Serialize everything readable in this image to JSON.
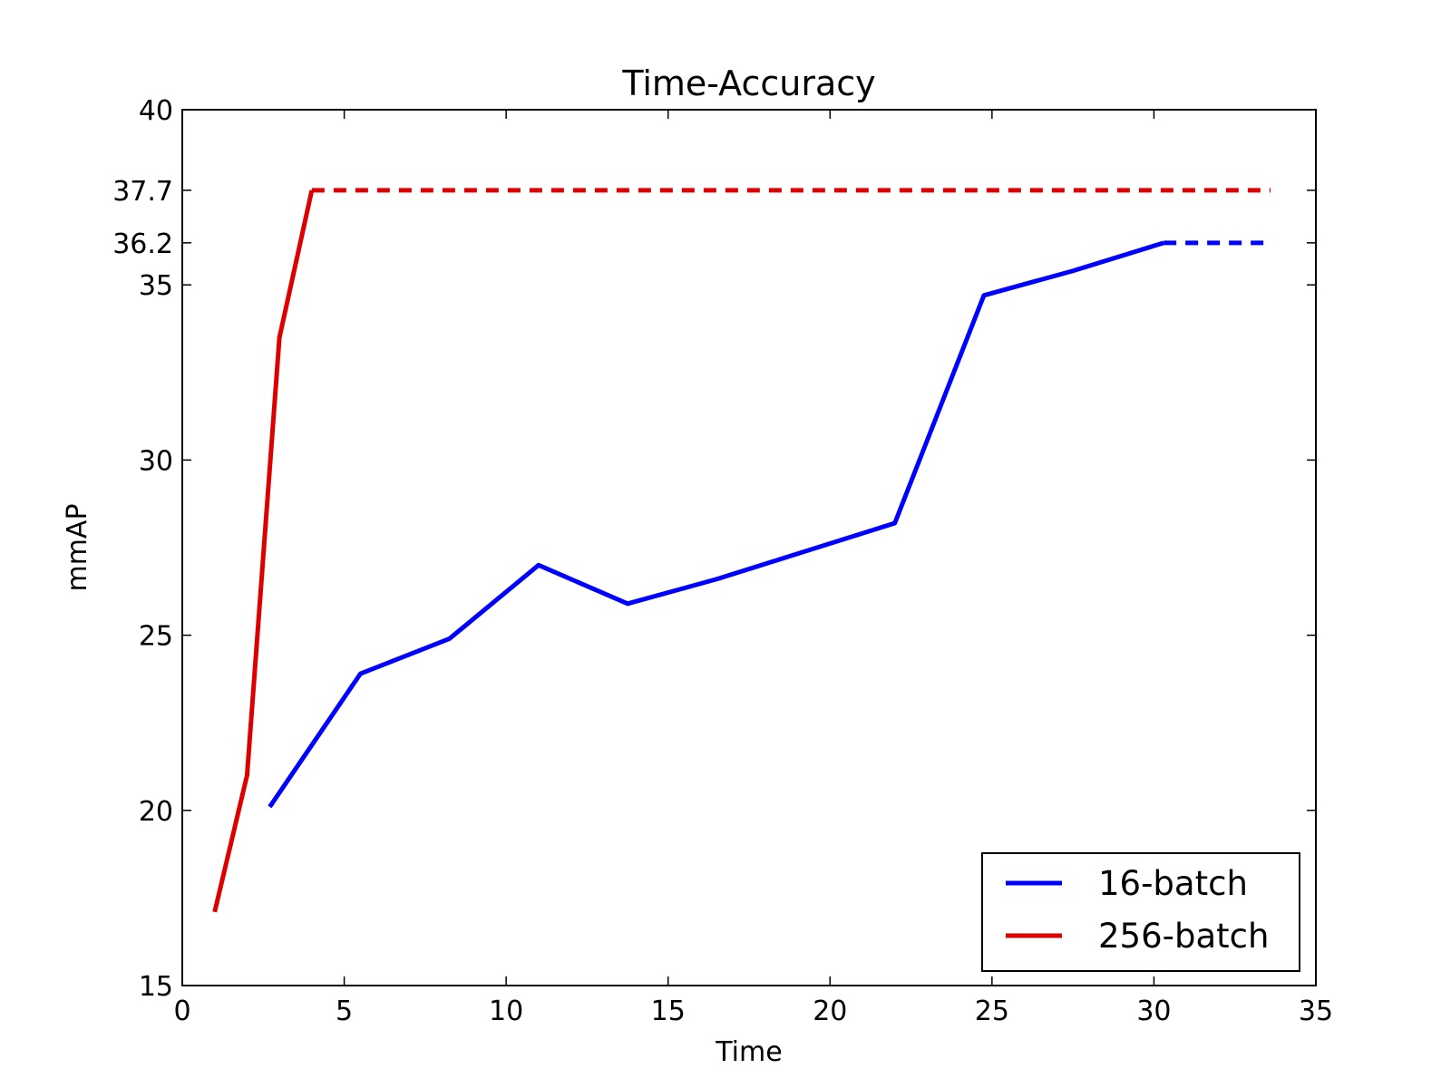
{
  "chart_data": {
    "type": "line",
    "title": "Time-Accuracy",
    "xlabel": "Time",
    "ylabel": "mmAP",
    "xlim": [
      0,
      35
    ],
    "ylim": [
      15,
      40
    ],
    "xticks": [
      0,
      5,
      10,
      15,
      20,
      25,
      30,
      35
    ],
    "xtick_labels": [
      "0",
      "5",
      "10",
      "15",
      "20",
      "25",
      "30",
      "35"
    ],
    "yticks": [
      15,
      20,
      25,
      30,
      35,
      36.2,
      37.7,
      40
    ],
    "ytick_labels": [
      "15",
      "20",
      "25",
      "30",
      "35",
      "36.2",
      "37.7",
      "40"
    ],
    "grid": false,
    "legend_position": "lower-right",
    "series": [
      {
        "name": "16-batch",
        "color": "#0000ff",
        "x": [
          2.7,
          5.5,
          8.25,
          11.0,
          13.75,
          16.5,
          19.25,
          22.0,
          24.75,
          27.5,
          30.3
        ],
        "y": [
          20.1,
          23.9,
          24.9,
          27.0,
          25.9,
          26.6,
          27.4,
          28.2,
          34.7,
          35.4,
          36.2
        ],
        "extension": {
          "x": [
            30.3,
            33.6
          ],
          "y": [
            36.2,
            36.2
          ],
          "style": "dashed"
        }
      },
      {
        "name": "256-batch",
        "color": "#dd0000",
        "x": [
          1.0,
          2.0,
          3.0,
          4.0
        ],
        "y": [
          17.1,
          21.0,
          33.5,
          37.7
        ],
        "extension": {
          "x": [
            4.0,
            33.6
          ],
          "y": [
            37.7,
            37.7
          ],
          "style": "dashed"
        }
      }
    ]
  }
}
